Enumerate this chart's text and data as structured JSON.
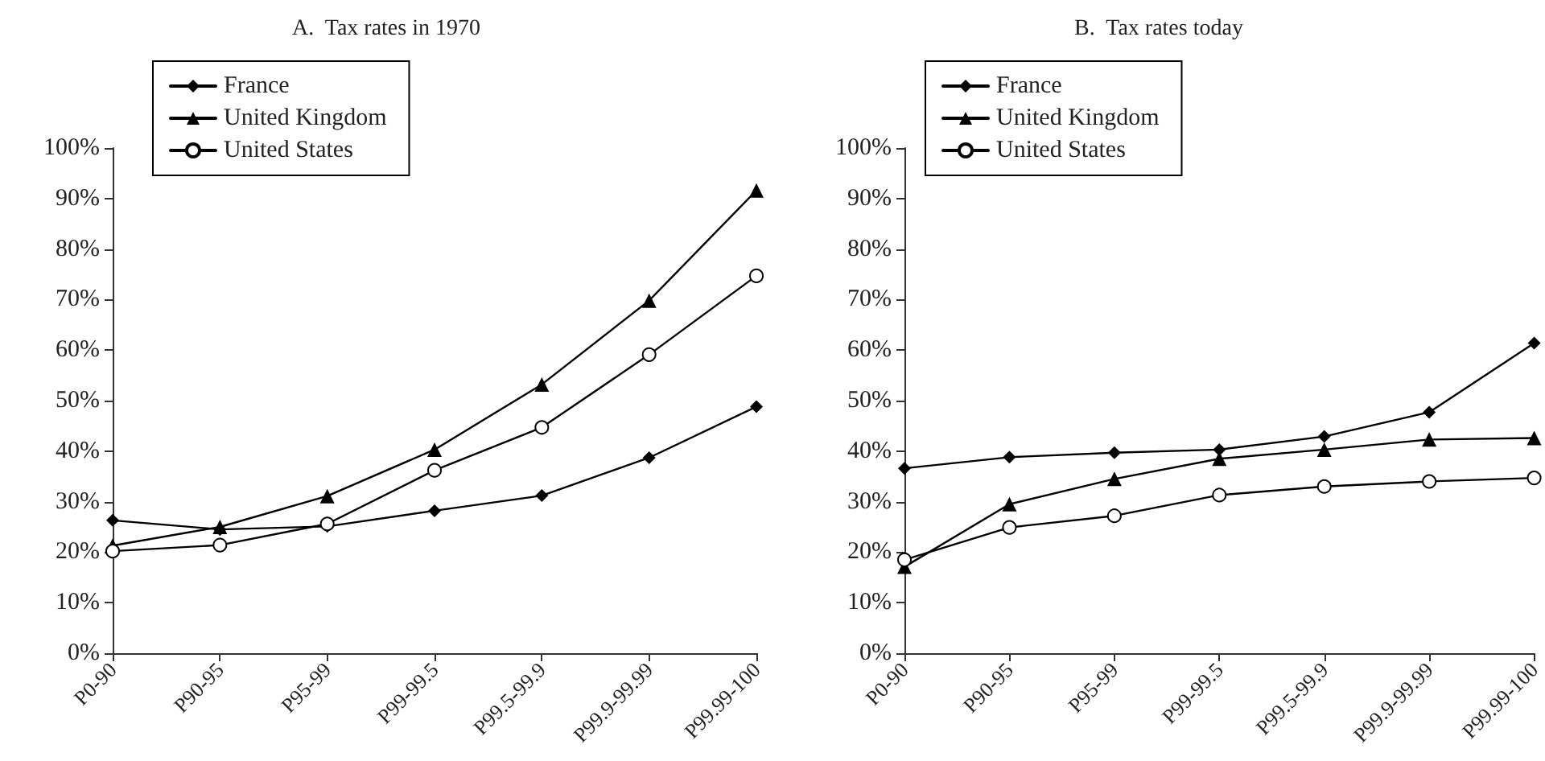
{
  "chart_data": [
    {
      "type": "line",
      "title": "A.  Tax rates in 1970",
      "categories": [
        "P0-90",
        "P90-95",
        "P95-99",
        "P99-99.5",
        "P99.5-99.9",
        "P99.9-99.99",
        "P99.99-100"
      ],
      "series": [
        {
          "name": "France",
          "color": "#000000",
          "marker": "diamond",
          "values": [
            26.3,
            24.5,
            25.1,
            28.2,
            31.2,
            38.7,
            48.8
          ]
        },
        {
          "name": "United Kingdom",
          "color": "#000000",
          "marker": "triangle",
          "values": [
            21.3,
            25.0,
            31.1,
            40.3,
            53.2,
            69.8,
            91.6
          ]
        },
        {
          "name": "United States",
          "color": "#000000",
          "marker": "circle",
          "values": [
            20.2,
            21.4,
            25.6,
            36.2,
            44.7,
            59.1,
            74.7
          ]
        }
      ],
      "ylim": [
        0,
        100
      ],
      "yticks": [
        {
          "value": 0,
          "label": "0%"
        },
        {
          "value": 10,
          "label": "10%"
        },
        {
          "value": 20,
          "label": "20%"
        },
        {
          "value": 30,
          "label": "30%"
        },
        {
          "value": 40,
          "label": "40%"
        },
        {
          "value": 50,
          "label": "50%"
        },
        {
          "value": 60,
          "label": "60%"
        },
        {
          "value": 70,
          "label": "70%"
        },
        {
          "value": 80,
          "label": "80%"
        },
        {
          "value": 90,
          "label": "90%"
        },
        {
          "value": 100,
          "label": "100%"
        }
      ],
      "grid": false,
      "legend": "top left",
      "line_style": "solid"
    },
    {
      "type": "line",
      "title": "B.  Tax rates today",
      "categories": [
        "P0-90",
        "P90-95",
        "P95-99",
        "P99-99.5",
        "P99.5-99.9",
        "P99.9-99.99",
        "P99.99-100"
      ],
      "series": [
        {
          "name": "France",
          "color": "#000000",
          "marker": "diamond",
          "values": [
            36.6,
            38.8,
            39.7,
            40.3,
            42.9,
            47.7,
            61.4
          ]
        },
        {
          "name": "United Kingdom",
          "color": "#000000",
          "marker": "triangle",
          "values": [
            17.1,
            29.5,
            34.5,
            38.5,
            40.3,
            42.3,
            42.6
          ]
        },
        {
          "name": "United States",
          "color": "#000000",
          "marker": "circle",
          "values": [
            18.5,
            24.9,
            27.2,
            31.3,
            33.0,
            34.0,
            34.7
          ]
        }
      ],
      "ylim": [
        0,
        100
      ],
      "yticks": [
        {
          "value": 0,
          "label": "0%"
        },
        {
          "value": 10,
          "label": "10%"
        },
        {
          "value": 20,
          "label": "20%"
        },
        {
          "value": 30,
          "label": "30%"
        },
        {
          "value": 40,
          "label": "40%"
        },
        {
          "value": 50,
          "label": "50%"
        },
        {
          "value": 60,
          "label": "60%"
        },
        {
          "value": 70,
          "label": "70%"
        },
        {
          "value": 80,
          "label": "80%"
        },
        {
          "value": 90,
          "label": "90%"
        },
        {
          "value": 100,
          "label": "100%"
        }
      ],
      "grid": false,
      "legend": "top left",
      "line_style": "solid"
    }
  ]
}
